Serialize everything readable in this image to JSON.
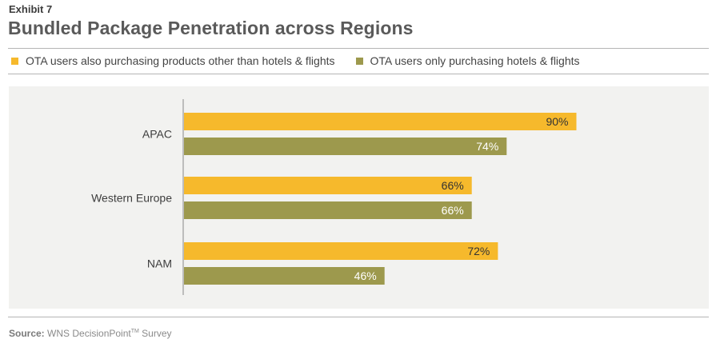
{
  "header": {
    "exhibit": "Exhibit 7",
    "title": "Bundled Package Penetration across Regions"
  },
  "source": {
    "label": "Source:",
    "text": "WNS DecisionPoint",
    "tm": "TM",
    "suffix": " Survey"
  },
  "colors": {
    "series1": "#f6b92c",
    "series2": "#9d994d",
    "axis": "#888888"
  },
  "chart_data": {
    "type": "bar",
    "orientation": "horizontal",
    "categories": [
      "APAC",
      "Western Europe",
      "NAM"
    ],
    "series": [
      {
        "name": "OTA users also purchasing products other than hotels & flights",
        "values": [
          90,
          66,
          72
        ],
        "labels": [
          "90%",
          "66%",
          "72%"
        ],
        "color": "#f6b92c"
      },
      {
        "name": "OTA users only purchasing hotels & flights",
        "values": [
          74,
          66,
          46
        ],
        "labels": [
          "74%",
          "66%",
          "46%"
        ],
        "color": "#9d994d"
      }
    ],
    "legend": "top-left",
    "grid": false,
    "xlim": [
      0,
      100
    ]
  }
}
